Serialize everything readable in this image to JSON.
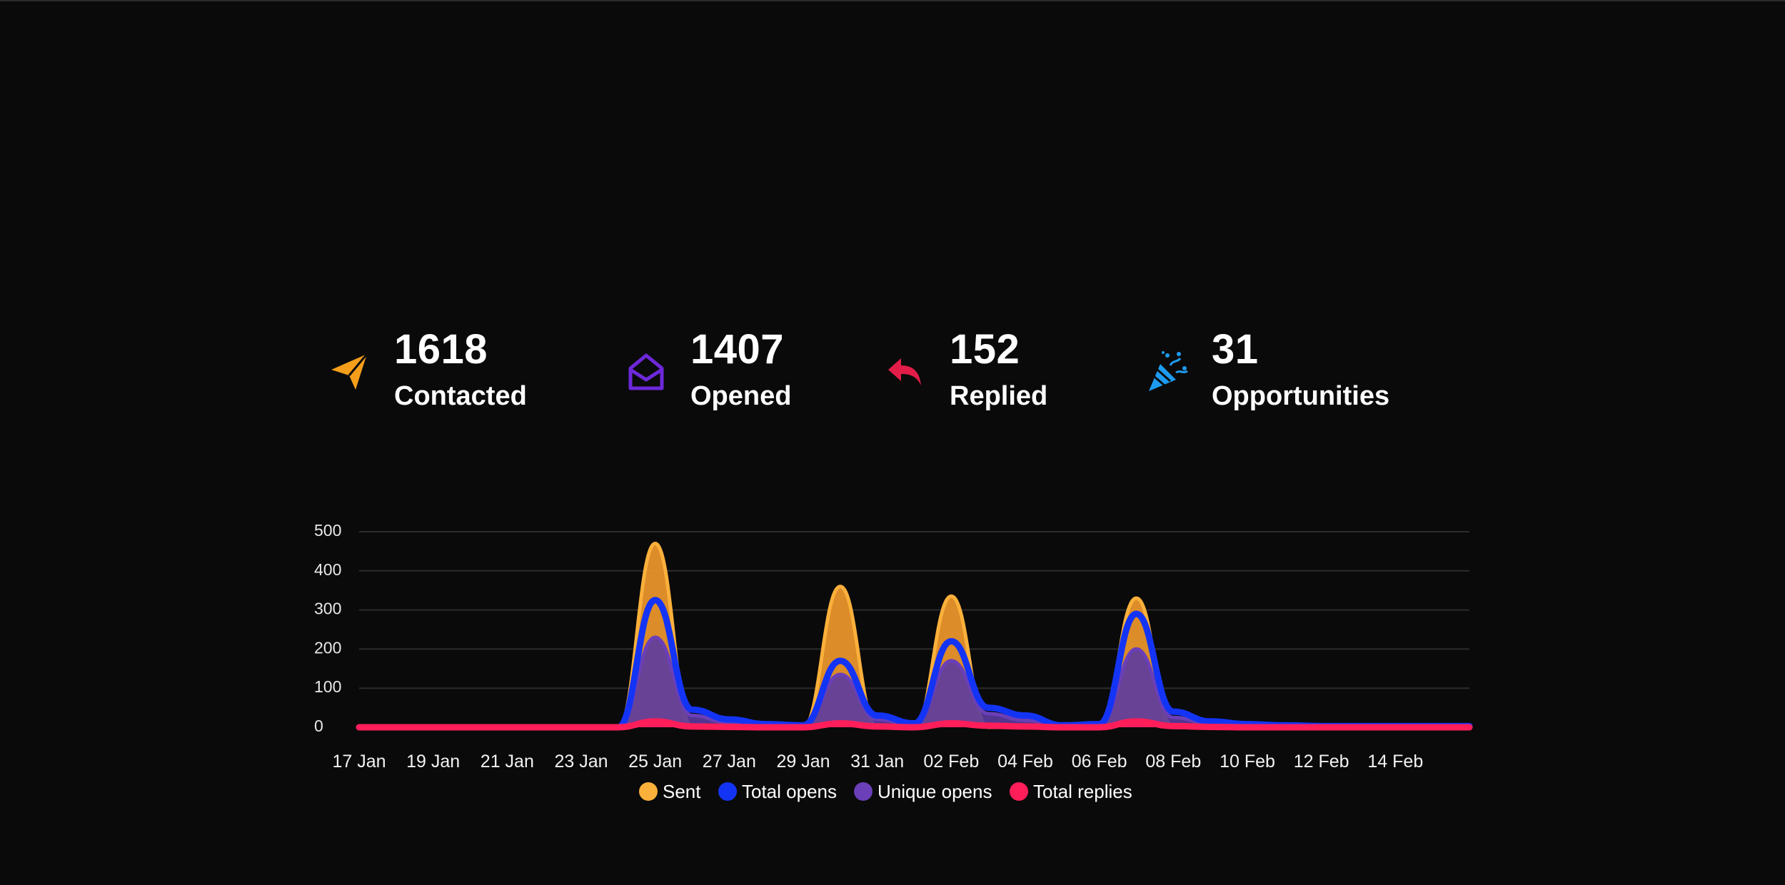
{
  "stats": [
    {
      "value": "1618",
      "label": "Contacted",
      "icon": "paper-plane-icon",
      "color": "#f59e1b"
    },
    {
      "value": "1407",
      "label": "Opened",
      "icon": "open-envelope-icon",
      "color": "#6d28d9"
    },
    {
      "value": "152",
      "label": "Replied",
      "icon": "reply-arrow-icon",
      "color": "#e11d48"
    },
    {
      "value": "31",
      "label": "Opportunities",
      "icon": "party-popper-icon",
      "color": "#1e9bf0"
    }
  ],
  "chart_data": {
    "type": "area",
    "y_ticks": [
      "500",
      "400",
      "300",
      "200",
      "100",
      "0"
    ],
    "ylim": [
      0,
      500
    ],
    "grid": true,
    "x_tick_labels": [
      "17 Jan",
      "19 Jan",
      "21 Jan",
      "23 Jan",
      "25 Jan",
      "27 Jan",
      "29 Jan",
      "31 Jan",
      "02 Feb",
      "04 Feb",
      "06 Feb",
      "08 Feb",
      "10 Feb",
      "12 Feb",
      "14 Feb"
    ],
    "x": [
      "17 Jan",
      "18 Jan",
      "19 Jan",
      "20 Jan",
      "21 Jan",
      "22 Jan",
      "23 Jan",
      "24 Jan",
      "25 Jan",
      "26 Jan",
      "27 Jan",
      "28 Jan",
      "29 Jan",
      "30 Jan",
      "31 Jan",
      "01 Feb",
      "02 Feb",
      "03 Feb",
      "04 Feb",
      "05 Feb",
      "06 Feb",
      "07 Feb",
      "08 Feb",
      "09 Feb",
      "10 Feb",
      "11 Feb",
      "12 Feb",
      "13 Feb",
      "14 Feb",
      "15 Feb",
      "16 Feb"
    ],
    "legend_position": "bottom",
    "series": [
      {
        "name": "Sent",
        "color": "#fbb03b",
        "fill": "#e8932a",
        "values": [
          0,
          0,
          0,
          0,
          0,
          0,
          0,
          0,
          470,
          0,
          0,
          0,
          0,
          360,
          0,
          0,
          335,
          0,
          0,
          0,
          0,
          330,
          0,
          0,
          0,
          0,
          0,
          0,
          0,
          0,
          0
        ]
      },
      {
        "name": "Total opens",
        "color": "#1434f5",
        "fill": "none",
        "values": [
          0,
          0,
          0,
          0,
          0,
          0,
          0,
          0,
          325,
          45,
          20,
          8,
          5,
          170,
          30,
          10,
          220,
          50,
          30,
          5,
          8,
          290,
          40,
          15,
          8,
          5,
          3,
          3,
          3,
          3,
          3
        ]
      },
      {
        "name": "Unique opens",
        "color": "#6b3fb8",
        "fill": "#5b3aa0",
        "values": [
          0,
          0,
          0,
          0,
          0,
          0,
          0,
          0,
          230,
          30,
          12,
          5,
          3,
          135,
          20,
          6,
          170,
          35,
          18,
          3,
          5,
          200,
          25,
          10,
          5,
          3,
          2,
          2,
          2,
          2,
          2
        ]
      },
      {
        "name": "Total replies",
        "color": "#ff1e5a",
        "fill": "#ff1e5a",
        "values": [
          0,
          0,
          0,
          0,
          0,
          0,
          0,
          0,
          15,
          2,
          1,
          0,
          0,
          10,
          2,
          0,
          10,
          4,
          2,
          0,
          0,
          15,
          3,
          1,
          0,
          0,
          0,
          0,
          0,
          0,
          0
        ]
      }
    ]
  }
}
